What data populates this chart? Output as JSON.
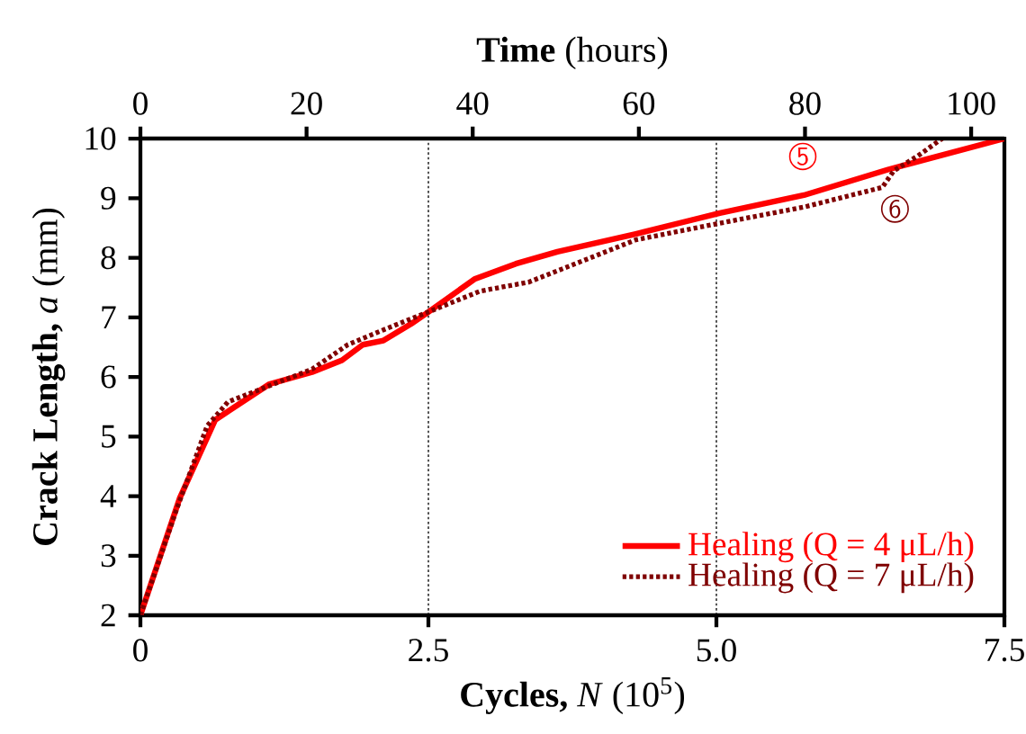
{
  "chart_data": {
    "type": "line",
    "xlabel": "**Cycles,** *N* (10$^{5}$)",
    "ylabel": "**Crack Length,** *a* (mm)",
    "x2label": "**Time** (hours)",
    "xlim": [
      0,
      7.5
    ],
    "xticks": [
      0,
      2.5,
      {
        "value": 5.0,
        "label": "5.0"
      },
      7.5
    ],
    "ylim": [
      2,
      10
    ],
    "yticks": [
      2,
      3,
      4,
      5,
      6,
      7,
      8,
      9,
      10
    ],
    "x2lim": [
      0,
      104
    ],
    "x2ticks": [
      0,
      20,
      40,
      60,
      80,
      100
    ],
    "legend": "bottom right",
    "ref_lines": [
      {
        "axis": "x",
        "value": 2.5,
        "line_style": "dotted",
        "color": "#000000"
      },
      {
        "axis": "x",
        "value": 5.0,
        "line_style": "dotted",
        "color": "#000000"
      }
    ],
    "annotations": [
      {
        "text": "5",
        "x": 5.75,
        "y": 9.7
      },
      {
        "text": "6",
        "x": 6.55,
        "y": 8.82
      }
    ],
    "series": [
      {
        "name": "Healing (Q = 4 μL/h)",
        "color": "#ff0000",
        "line_style": "solid",
        "x": [
          0,
          0.34,
          0.65,
          1.12,
          1.49,
          1.75,
          1.93,
          2.11,
          2.35,
          2.5,
          2.9,
          3.26,
          3.62,
          4.3,
          5.03,
          5.76,
          6.49,
          7.5
        ],
        "values": [
          2,
          3.96,
          5.28,
          5.88,
          6.08,
          6.28,
          6.54,
          6.61,
          6.89,
          7.09,
          7.64,
          7.9,
          8.1,
          8.4,
          8.75,
          9.05,
          9.48,
          10
        ]
      },
      {
        "name": "Healing (Q = 7 μL/h)",
        "color": "#7f0000",
        "line_style": "dotted",
        "x": [
          0,
          0.3,
          0.58,
          0.76,
          1.49,
          1.8,
          2.11,
          2.5,
          2.95,
          3.37,
          4.3,
          5.03,
          5.76,
          6.44,
          6.54,
          6.75,
          6.93,
          6.96
        ],
        "values": [
          2,
          3.7,
          5.18,
          5.58,
          6.13,
          6.54,
          6.79,
          7.09,
          7.44,
          7.59,
          8.3,
          8.58,
          8.85,
          9.18,
          9.46,
          9.71,
          9.96,
          10
        ]
      }
    ]
  }
}
